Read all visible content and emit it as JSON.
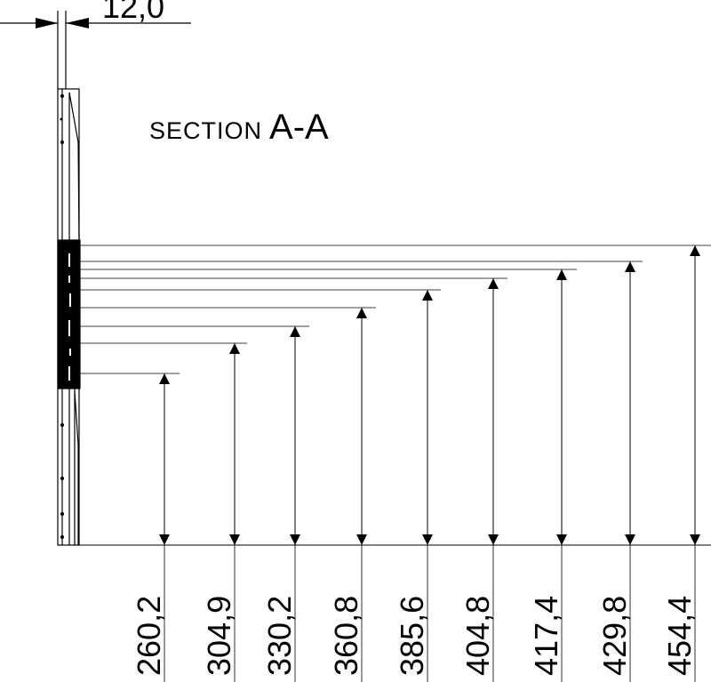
{
  "title": {
    "word": "SECTION",
    "id": "A-A"
  },
  "thickness_dimension": "12,0",
  "height_dimensions": [
    "260,2",
    "304,9",
    "330,2",
    "360,8",
    "385,6",
    "404,8",
    "417,4",
    "429,8",
    "454,4"
  ],
  "colors": {
    "line": "#000000",
    "background": "#ffffff"
  }
}
